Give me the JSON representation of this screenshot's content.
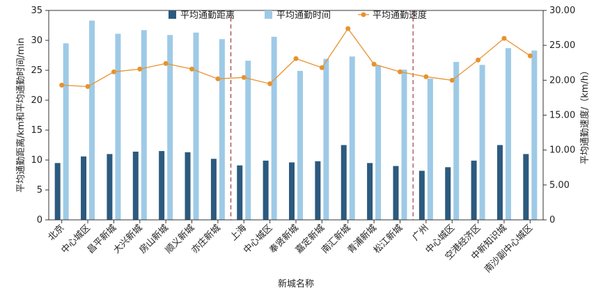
{
  "chart_data": {
    "type": "bar+line",
    "xlabel": "新城名称",
    "ylabel_left": "平均通勤距离/km和平均通勤时间/min",
    "ylabel_right": "平均通勤速度/（km/h）",
    "ylim_left": [
      0,
      35
    ],
    "ylim_right": [
      0,
      30
    ],
    "yticks_left": [
      "0",
      "5",
      "10",
      "15",
      "20",
      "25",
      "30",
      "35"
    ],
    "yticks_right": [
      "0",
      "5.00",
      "10.00",
      "15.00",
      "20.00",
      "25.00",
      "30.00"
    ],
    "categories": [
      "北京",
      "中心城区",
      "昌平新城",
      "大兴新城",
      "房山新城",
      "顺义新城",
      "亦庄新城",
      "上海",
      "中心城区",
      "奉贤新城",
      "嘉定新城",
      "南汇新城",
      "青浦新城",
      "松江新城",
      "广州",
      "中心城区",
      "空港经济区",
      "中新知识城",
      "南沙副中心城区"
    ],
    "group_separators_after": [
      6,
      13
    ],
    "series": [
      {
        "name": "平均通勤距离",
        "type": "bar",
        "axis": "left",
        "color": "#2c5a7e",
        "values": [
          9.5,
          10.6,
          11.0,
          11.4,
          11.5,
          11.3,
          10.2,
          9.1,
          9.9,
          9.6,
          9.8,
          12.5,
          9.5,
          9.0,
          8.2,
          8.8,
          9.9,
          12.5,
          11.0
        ]
      },
      {
        "name": "平均通勤时间",
        "type": "bar",
        "axis": "left",
        "color": "#9ecae6",
        "values": [
          29.5,
          33.3,
          31.1,
          31.7,
          30.9,
          31.3,
          30.2,
          26.6,
          30.6,
          24.9,
          26.9,
          27.3,
          25.8,
          25.1,
          23.6,
          26.4,
          25.9,
          28.7,
          28.3
        ]
      },
      {
        "name": "平均通勤速度",
        "type": "line",
        "axis": "right",
        "color": "#e8922e",
        "values": [
          19.3,
          19.1,
          21.2,
          21.6,
          22.4,
          21.6,
          20.2,
          20.4,
          19.5,
          23.1,
          21.8,
          27.4,
          22.3,
          21.2,
          20.5,
          20.0,
          22.9,
          26.0,
          23.5
        ]
      }
    ],
    "legend_position": "top"
  }
}
